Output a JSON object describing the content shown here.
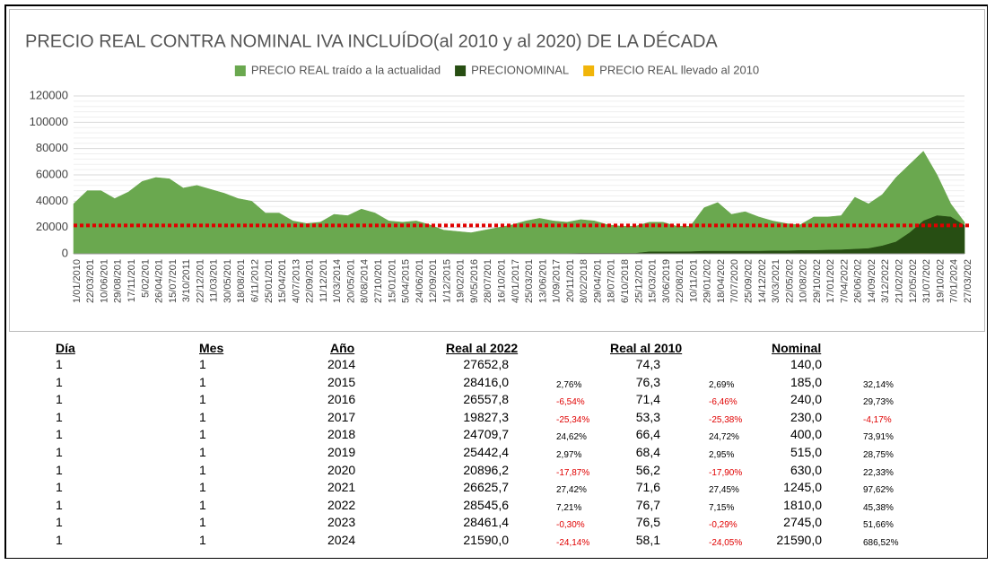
{
  "chart_data": {
    "type": "area",
    "title": "PRECIO REAL CONTRA NOMINAL IVA INCLUÍDO(al 2010 y al 2020) DE LA  DÉCADA",
    "categories": [
      "1/01/2010",
      "22/03/201",
      "10/06/201",
      "29/08/201",
      "17/11/201",
      "5/02/201",
      "26/04/201",
      "15/07/201",
      "3/10/2011",
      "22/12/201",
      "11/03/201",
      "30/05/201",
      "18/08/201",
      "6/11/2012",
      "25/01/201",
      "15/04/201",
      "4/07/2013",
      "22/09/201",
      "11/12/201",
      "1/03/2014",
      "20/05/201",
      "8/08/2014",
      "27/10/201",
      "15/01/201",
      "5/04/2015",
      "24/06/201",
      "12/09/201",
      "1/12/2015",
      "19/02/201",
      "9/05/2016",
      "28/07/201",
      "16/10/201",
      "4/01/2017",
      "25/03/201",
      "13/06/201",
      "1/09/2017",
      "20/11/201",
      "8/02/2018",
      "29/04/201",
      "18/07/201",
      "6/10/2018",
      "25/12/201",
      "15/03/201",
      "3/06/2019",
      "22/08/201",
      "10/11/201",
      "29/01/202",
      "18/04/202",
      "7/07/2020",
      "25/09/202",
      "14/12/202",
      "3/03/2021",
      "22/05/202",
      "10/08/202",
      "29/10/202",
      "17/01/202",
      "7/04/2022",
      "26/06/202",
      "14/09/202",
      "3/12/2022",
      "21/02/202",
      "12/05/202",
      "31/07/202",
      "19/10/202",
      "7/01/2024",
      "27/03/202"
    ],
    "series": [
      {
        "name": "PRECIO REAL traído a la actualidad",
        "color": "#6aa84f",
        "values": [
          38000,
          48000,
          48000,
          42000,
          47000,
          55000,
          58000,
          57000,
          50000,
          52000,
          49000,
          46000,
          42000,
          40000,
          31000,
          31000,
          25000,
          23000,
          24000,
          30000,
          29000,
          34000,
          31000,
          25000,
          24000,
          25000,
          22000,
          18000,
          17000,
          16000,
          18000,
          20000,
          22000,
          25000,
          27000,
          25000,
          24000,
          26000,
          25000,
          22000,
          21000,
          21000,
          24000,
          24000,
          21000,
          21000,
          35000,
          39000,
          30000,
          32000,
          28000,
          25000,
          23000,
          22000,
          28000,
          28000,
          29000,
          43000,
          38000,
          45000,
          58000,
          68000,
          78000,
          60000,
          38000,
          24000
        ]
      },
      {
        "name": "PRECIONOMINAL",
        "color": "#274e13",
        "values": [
          100,
          100,
          100,
          100,
          100,
          110,
          110,
          110,
          110,
          110,
          120,
          120,
          120,
          120,
          130,
          130,
          130,
          130,
          130,
          140,
          140,
          140,
          140,
          185,
          185,
          185,
          185,
          185,
          240,
          240,
          240,
          240,
          230,
          230,
          230,
          230,
          230,
          400,
          400,
          400,
          400,
          400,
          1500,
          1500,
          1500,
          1600,
          2000,
          2000,
          2000,
          2000,
          2000,
          2200,
          2200,
          2500,
          2500,
          2800,
          3000,
          3500,
          4000,
          6000,
          9000,
          16000,
          25000,
          29000,
          28000,
          21590
        ]
      },
      {
        "name": "PRECIO REAL llevado al 2010",
        "color": "#f1b50a",
        "values": [
          102,
          129,
          129,
          113,
          126,
          148,
          156,
          153,
          134,
          140,
          132,
          124,
          113,
          108,
          83,
          83,
          67,
          62,
          65,
          81,
          78,
          91,
          83,
          67,
          65,
          67,
          59,
          48,
          46,
          43,
          48,
          54,
          59,
          67,
          73,
          67,
          65,
          70,
          67,
          59,
          56,
          56,
          65,
          65,
          56,
          56,
          94,
          105,
          81,
          86,
          75,
          67,
          62,
          59,
          75,
          75,
          78,
          116,
          102,
          121,
          156,
          183,
          210,
          161,
          102,
          65
        ]
      }
    ],
    "reference_line": {
      "value": 21590,
      "color": "#e00000"
    },
    "ylim": [
      0,
      120000
    ],
    "yticks": [
      0,
      20000,
      40000,
      60000,
      80000,
      100000,
      120000
    ],
    "grid": true,
    "legend": "top"
  },
  "table": {
    "headers": [
      "Día",
      "Mes",
      "Año",
      "Real al 2022",
      "Real al 2010",
      "Nominal"
    ],
    "rows": [
      {
        "dia": "1",
        "mes": "1",
        "anio": "2014",
        "real2022": "27652,8",
        "real2010": "74,3",
        "nominal": "140,0"
      },
      {
        "dia": "1",
        "mes": "1",
        "anio": "2015",
        "real2022": "28416,0",
        "real2022_change": "2,76%",
        "real2010": "76,3",
        "real2010_change": "2,69%",
        "nominal": "185,0",
        "nominal_change": "32,14%"
      },
      {
        "dia": "1",
        "mes": "1",
        "anio": "2016",
        "real2022": "26557,8",
        "real2022_change": "-6,54%",
        "real2010": "71,4",
        "real2010_change": "-6,46%",
        "nominal": "240,0",
        "nominal_change": "29,73%"
      },
      {
        "dia": "1",
        "mes": "1",
        "anio": "2017",
        "real2022": "19827,3",
        "real2022_change": "-25,34%",
        "real2010": "53,3",
        "real2010_change": "-25,38%",
        "nominal": "230,0",
        "nominal_change": "-4,17%"
      },
      {
        "dia": "1",
        "mes": "1",
        "anio": "2018",
        "real2022": "24709,7",
        "real2022_change": "24,62%",
        "real2010": "66,4",
        "real2010_change": "24,72%",
        "nominal": "400,0",
        "nominal_change": "73,91%"
      },
      {
        "dia": "1",
        "mes": "1",
        "anio": "2019",
        "real2022": "25442,4",
        "real2022_change": "2,97%",
        "real2010": "68,4",
        "real2010_change": "2,95%",
        "nominal": "515,0",
        "nominal_change": "28,75%"
      },
      {
        "dia": "1",
        "mes": "1",
        "anio": "2020",
        "real2022": "20896,2",
        "real2022_change": "-17,87%",
        "real2010": "56,2",
        "real2010_change": "-17,90%",
        "nominal": "630,0",
        "nominal_change": "22,33%"
      },
      {
        "dia": "1",
        "mes": "1",
        "anio": "2021",
        "real2022": "26625,7",
        "real2022_change": "27,42%",
        "real2010": "71,6",
        "real2010_change": "27,45%",
        "nominal": "1245,0",
        "nominal_change": "97,62%"
      },
      {
        "dia": "1",
        "mes": "1",
        "anio": "2022",
        "real2022": "28545,6",
        "real2022_change": "7,21%",
        "real2010": "76,7",
        "real2010_change": "7,15%",
        "nominal": "1810,0",
        "nominal_change": "45,38%"
      },
      {
        "dia": "1",
        "mes": "1",
        "anio": "2023",
        "real2022": "28461,4",
        "real2022_change": "-0,30%",
        "real2010": "76,5",
        "real2010_change": "-0,29%",
        "nominal": "2745,0",
        "nominal_change": "51,66%"
      },
      {
        "dia": "1",
        "mes": "1",
        "anio": "2024",
        "real2022": "21590,0",
        "real2022_change": "-24,14%",
        "real2010": "58,1",
        "real2010_change": "-24,05%",
        "nominal": "21590,0",
        "nominal_change": "686,52%"
      }
    ]
  }
}
